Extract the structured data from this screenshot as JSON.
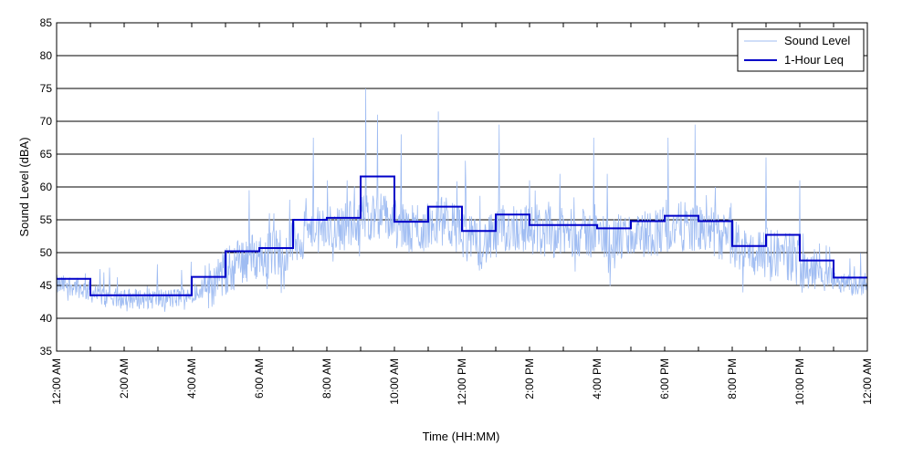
{
  "chart_data": {
    "type": "line",
    "title": "",
    "xlabel": "Time (HH:MM)",
    "ylabel": "Sound Level (dBA)",
    "ylim": [
      35,
      85
    ],
    "xlim_hours": [
      0,
      24
    ],
    "y_ticks": [
      35,
      40,
      45,
      50,
      55,
      60,
      65,
      70,
      75,
      80,
      85
    ],
    "x_tick_hours": [
      0,
      2,
      4,
      6,
      8,
      10,
      12,
      14,
      16,
      18,
      20,
      22,
      24
    ],
    "x_tick_labels": [
      "12:00 AM",
      "2:00 AM",
      "4:00 AM",
      "6:00 AM",
      "8:00 AM",
      "10:00 AM",
      "12:00 PM",
      "2:00 PM",
      "4:00 PM",
      "6:00 PM",
      "8:00 PM",
      "10:00 PM",
      "12:00 AM"
    ],
    "grid": "horizontal major",
    "legend_position": "top-right",
    "colors": {
      "sound_level": "#9fbcf2",
      "leq": "#0000c8",
      "grid": "#000000"
    },
    "series": [
      {
        "name": "Sound Level",
        "kind": "continuous",
        "hourly_baseline": [
          45,
          43,
          43,
          43,
          45,
          49,
          50,
          53,
          54,
          56,
          53,
          55,
          51,
          54,
          53,
          53,
          52,
          53,
          54,
          53,
          50,
          50,
          47,
          45
        ],
        "peaks": [
          {
            "hour": 1.4,
            "value": 47
          },
          {
            "hour": 5.7,
            "value": 59.5
          },
          {
            "hour": 6.3,
            "value": 56
          },
          {
            "hour": 7.6,
            "value": 67.5
          },
          {
            "hour": 8.6,
            "value": 61
          },
          {
            "hour": 9.15,
            "value": 75
          },
          {
            "hour": 9.5,
            "value": 71
          },
          {
            "hour": 10.2,
            "value": 68
          },
          {
            "hour": 11.3,
            "value": 71.5
          },
          {
            "hour": 12.1,
            "value": 64
          },
          {
            "hour": 13.1,
            "value": 69.5
          },
          {
            "hour": 14.0,
            "value": 61
          },
          {
            "hour": 14.9,
            "value": 62
          },
          {
            "hour": 15.9,
            "value": 67.5
          },
          {
            "hour": 16.3,
            "value": 62
          },
          {
            "hour": 18.1,
            "value": 67.5
          },
          {
            "hour": 18.9,
            "value": 69.5
          },
          {
            "hour": 19.5,
            "value": 60
          },
          {
            "hour": 21.0,
            "value": 64.5
          },
          {
            "hour": 22.0,
            "value": 61
          }
        ]
      },
      {
        "name": "1-Hour Leq",
        "kind": "step",
        "values": [
          46,
          43.5,
          43.5,
          43.5,
          46.3,
          50.2,
          50.7,
          55,
          55.3,
          61.6,
          54.7,
          57,
          53.3,
          55.8,
          54.2,
          54.2,
          53.7,
          54.8,
          55.6,
          54.8,
          51,
          52.7,
          48.8,
          46.2
        ]
      }
    ]
  }
}
